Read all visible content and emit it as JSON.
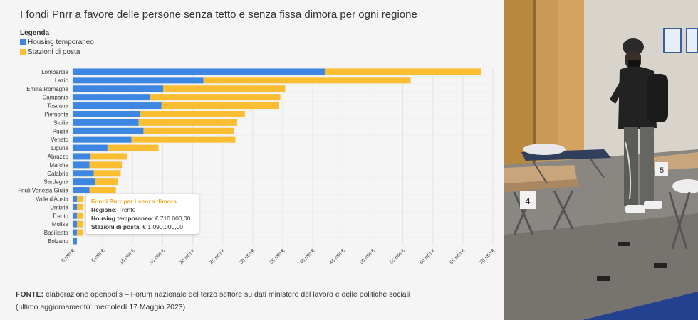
{
  "title": "I fondi Pnrr a favore delle persone senza tetto e senza fissa dimora per ogni regione",
  "legend": {
    "title": "Legenda",
    "items": [
      {
        "label": "Housing temporaneo",
        "color": "#3d87e3"
      },
      {
        "label": "Stazioni di posta",
        "color": "#fbbd31"
      }
    ]
  },
  "chart_data": {
    "type": "bar",
    "orientation": "horizontal",
    "stacked": true,
    "categories": [
      "Lombardia",
      "Lazio",
      "Emilia Romagna",
      "Campania",
      "Toscana",
      "Piemonte",
      "Sicilia",
      "Puglia",
      "Veneto",
      "Liguria",
      "Abruzzo",
      "Marche",
      "Calabria",
      "Sardegna",
      "Friuli Venezia Giulia",
      "Valle d'Aosta",
      "Umbria",
      "Trento",
      "Molise",
      "Basilicata",
      "Bolzano"
    ],
    "series": [
      {
        "name": "Housing temporaneo",
        "color": "#3d87e3",
        "values": [
          42.1,
          21.8,
          15.1,
          12.9,
          14.8,
          11.3,
          11.0,
          11.8,
          9.8,
          5.8,
          3.0,
          2.8,
          3.5,
          3.8,
          2.8,
          0.71,
          0.71,
          0.71,
          0.71,
          0.71,
          0.71
        ]
      },
      {
        "name": "Stazioni di posta",
        "color": "#fbbd31",
        "values": [
          25.9,
          34.5,
          20.3,
          21.7,
          19.6,
          17.4,
          16.4,
          15.1,
          17.3,
          8.5,
          6.1,
          5.4,
          4.5,
          3.7,
          4.4,
          1.09,
          1.09,
          1.09,
          1.09,
          1.09,
          0
        ]
      }
    ],
    "xlim": [
      0,
      70
    ],
    "xticks": [
      "0 mln €",
      "5 mln €",
      "10 mln €",
      "15 mln €",
      "20 mln €",
      "25 mln €",
      "30 mln €",
      "35 mln €",
      "40 mln €",
      "45 mln €",
      "50 mln €",
      "55 mln €",
      "60 mln €",
      "65 mln €",
      "70 mln €"
    ],
    "grid": true,
    "legend_position": "top-left"
  },
  "tooltip": {
    "title": "Fondi Pnrr per i senza dimora",
    "region_label": "Regione",
    "region_value": "Trento",
    "housing_label": "Housing temporaneo",
    "housing_value": "€ 710.000,00",
    "posta_label": "Stazioni di posta",
    "posta_value": "€ 1.090.000,00"
  },
  "source": {
    "label": "FONTE:",
    "text": "elaborazione openpolis – Forum nazionale del terzo settore su dati ministero del lavoro e delle politiche sociali",
    "updated": "(ultimo aggiornamento: mercoledì 17 Maggio 2023)"
  },
  "photo": {
    "cot_number_1": "4",
    "cot_number_2": "5"
  }
}
